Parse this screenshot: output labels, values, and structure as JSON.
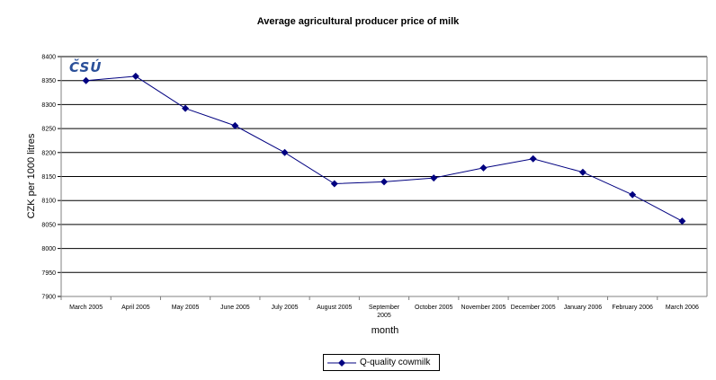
{
  "chart_data": {
    "type": "line",
    "title": "Average agricultural producer price of milk",
    "xlabel": "month",
    "ylabel": "CZK per 1000 litres",
    "ylim": [
      7900,
      8400
    ],
    "yticks": [
      7900,
      7950,
      8000,
      8050,
      8100,
      8150,
      8200,
      8250,
      8300,
      8350,
      8400
    ],
    "grid": true,
    "legend_position": "bottom",
    "categories": [
      "March 2005",
      "April 2005",
      "May 2005",
      "June 2005",
      "July 2005",
      "August 2005",
      "September 2005",
      "October 2005",
      "November 2005",
      "December 2005",
      "January 2006",
      "February 2006",
      "March 2006"
    ],
    "series": [
      {
        "name": "Q-quality cowmilk",
        "color": "#000080",
        "values": [
          8350,
          8359,
          8292,
          8256,
          8200,
          8135,
          8139,
          8147,
          8168,
          8187,
          8159,
          8112,
          8057
        ]
      }
    ]
  },
  "logo_text": "ČSÚ"
}
